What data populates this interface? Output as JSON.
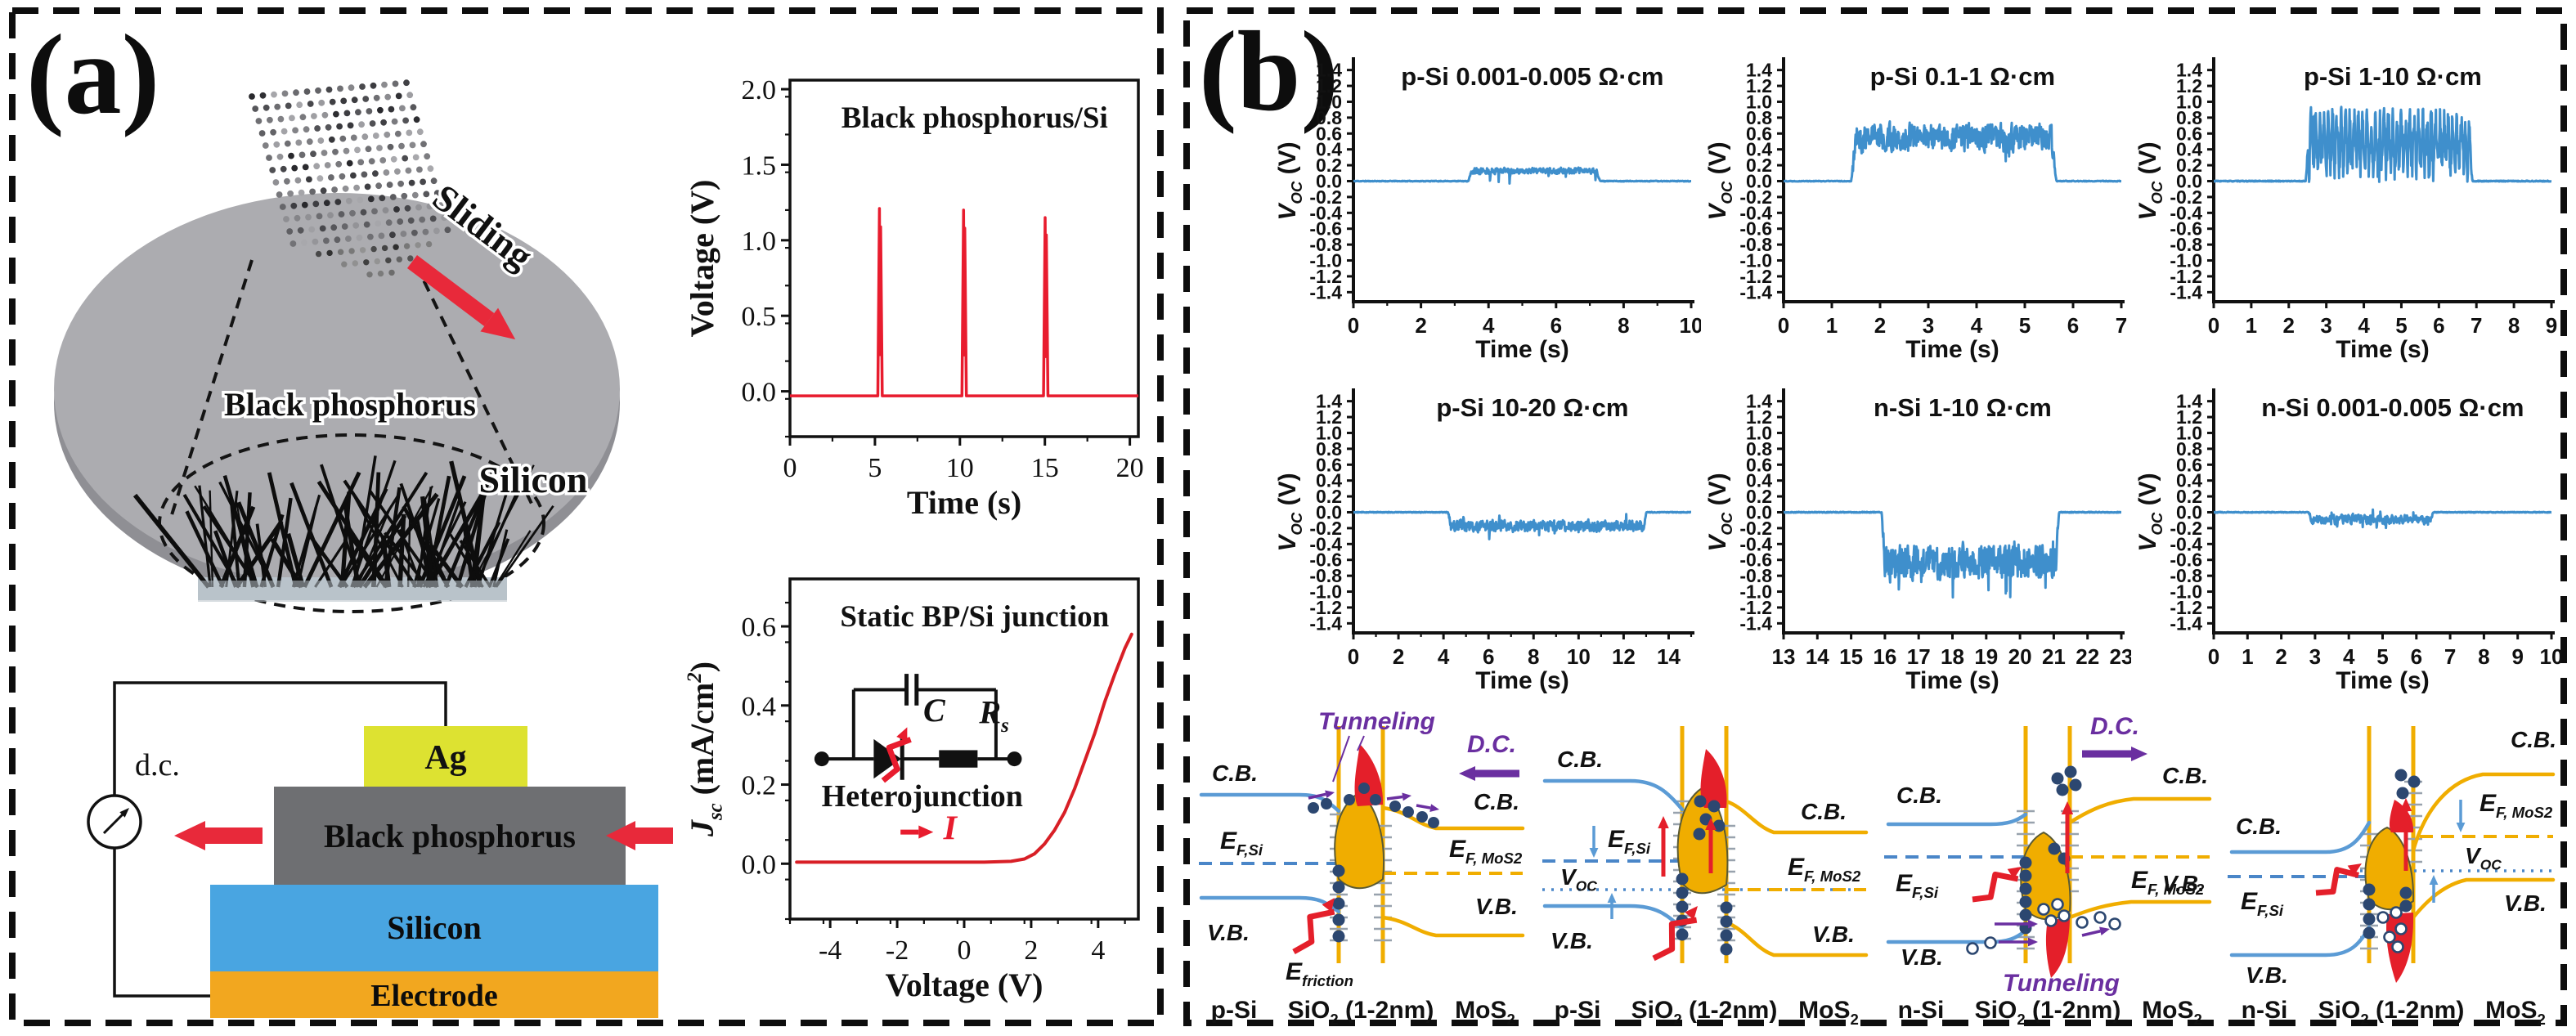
{
  "colors": {
    "curve_red": "#e81c2e",
    "curve_blue": "#3f8fcc",
    "band_blue": "#5b9bd5",
    "band_gold": "#f0ad00",
    "purple": "#6a2fa0",
    "navy": "#2c4770",
    "lightning_red": "#e41f2a",
    "wafer_gray": "#acacb0",
    "ag_yellow": "#dde231",
    "bp_gray": "#6e6f72",
    "si_blue": "#49a5e1",
    "electrode_orange": "#f2a71f"
  },
  "panel_a": {
    "label": "(a)",
    "wafer": {
      "bp_label": "Black phosphorus",
      "sliding_label": "Sliding",
      "silicon_label": "Silicon"
    },
    "device": {
      "dc_label": "d.c.",
      "ag": "Ag",
      "bp": "Black phosphorus",
      "si": "Silicon",
      "electrode": "Electrode"
    },
    "circuit": {
      "cap": "C",
      "res_main": "R",
      "res_sub": "s",
      "junction": "Heterojunction",
      "current": "I"
    }
  },
  "panel_b": {
    "label": "(b)"
  },
  "chart_data": [
    {
      "id": "bp-si-voltage",
      "type": "line",
      "panel": "a",
      "title": "Black phosphorus/Si",
      "xlabel": "Time (s)",
      "ylabel": "Voltage (V)",
      "ylabel_parts": [
        [
          "Voltage (V)",
          "n"
        ]
      ],
      "xlim": [
        0,
        20.5
      ],
      "ylim": [
        -0.3,
        2.06
      ],
      "xticks": [
        0,
        5,
        10,
        15,
        20
      ],
      "yticks": [
        0.0,
        0.5,
        1.0,
        1.5,
        2.0
      ],
      "x_minor": 2.5,
      "y_minor": 0.25,
      "baseline": -0.03,
      "spikes": [
        {
          "t": 5.3,
          "v": 1.21
        },
        {
          "t": 10.25,
          "v": 1.2
        },
        {
          "t": 15.05,
          "v": 1.15
        }
      ],
      "color": "#e81c2e"
    },
    {
      "id": "static-jv",
      "type": "line",
      "panel": "a",
      "title": "Static BP/Si junction",
      "xlabel": "Voltage (V)",
      "ylabel": "Jsc (mA/cm2)",
      "ylabel_parts": [
        [
          "J",
          "i"
        ],
        [
          "sc",
          "s"
        ],
        [
          " (mA/cm",
          "n"
        ],
        [
          "2",
          "p"
        ],
        [
          ")",
          "n"
        ]
      ],
      "xlim": [
        -5.2,
        5.2
      ],
      "ylim": [
        -0.14,
        0.72
      ],
      "xticks": [
        -4,
        -2,
        0,
        2,
        4
      ],
      "yticks": [
        0.0,
        0.2,
        0.4,
        0.6
      ],
      "x_minor": 1,
      "y_minor": 0.1,
      "points": [
        [
          -5,
          0.004
        ],
        [
          -4,
          0.004
        ],
        [
          -3,
          0.004
        ],
        [
          -2,
          0.004
        ],
        [
          -1,
          0.004
        ],
        [
          0,
          0.004
        ],
        [
          0.6,
          0.004
        ],
        [
          1.0,
          0.005
        ],
        [
          1.4,
          0.006
        ],
        [
          1.8,
          0.012
        ],
        [
          2.1,
          0.025
        ],
        [
          2.4,
          0.05
        ],
        [
          2.7,
          0.085
        ],
        [
          3.0,
          0.13
        ],
        [
          3.3,
          0.19
        ],
        [
          3.6,
          0.26
        ],
        [
          3.9,
          0.33
        ],
        [
          4.2,
          0.41
        ],
        [
          4.5,
          0.48
        ],
        [
          4.8,
          0.545
        ],
        [
          5.0,
          0.58
        ]
      ],
      "color": "#d81f26",
      "inset": "circuit"
    },
    {
      "id": "p-si-0001-0005",
      "type": "line",
      "panel": "b",
      "title": "p-Si 0.001-0.005 Ω·cm",
      "xlabel": "Time (s)",
      "ylabel": "VOC (V)",
      "ylabel_parts": [
        [
          "V",
          "i"
        ],
        [
          "OC",
          "s"
        ],
        [
          " (V)",
          "n"
        ]
      ],
      "xlim": [
        0,
        10
      ],
      "ylim": [
        -1.52,
        1.52
      ],
      "xticks": [
        0,
        2,
        4,
        6,
        8,
        10
      ],
      "x_minor": 1,
      "yticks": [
        1.4,
        1.2,
        1.0,
        0.8,
        0.6,
        0.4,
        0.2,
        0.0,
        -0.2,
        -0.4,
        -0.6,
        -0.8,
        -1.0,
        -1.2,
        -1.4
      ],
      "signal": {
        "active": [
          3.4,
          7.3
        ],
        "center": 0.13,
        "spread": 0.05,
        "spike_p": 0.03,
        "spike_lo": -0.15,
        "spike_hi": 0.22,
        "smooth": 0.35,
        "clamp": [
          -0.16,
          0.23
        ],
        "seed": 11
      },
      "color": "#3f8fcc"
    },
    {
      "id": "p-si-01-1",
      "type": "line",
      "panel": "b",
      "title": "p-Si 0.1-1 Ω·cm",
      "xlabel": "Time (s)",
      "ylabel": "VOC (V)",
      "ylabel_parts": [
        [
          "V",
          "i"
        ],
        [
          "OC",
          "s"
        ],
        [
          " (V)",
          "n"
        ]
      ],
      "xlim": [
        0,
        7
      ],
      "ylim": [
        -1.52,
        1.52
      ],
      "xticks": [
        0,
        1,
        2,
        3,
        4,
        5,
        6,
        7
      ],
      "yticks": [
        1.4,
        1.2,
        1.0,
        0.8,
        0.6,
        0.4,
        0.2,
        0.0,
        -0.2,
        -0.4,
        -0.6,
        -0.8,
        -1.0,
        -1.2,
        -1.4
      ],
      "signal": {
        "active": [
          1.4,
          5.65
        ],
        "center": 0.55,
        "spread": 0.22,
        "spike_p": 0.02,
        "spike_lo": 0.16,
        "spike_hi": 0.96,
        "smooth": 0.3,
        "clamp": [
          0.14,
          0.97
        ],
        "seed": 22
      },
      "color": "#3f8fcc"
    },
    {
      "id": "p-si-1-10",
      "type": "line",
      "panel": "b",
      "title": "p-Si 1-10 Ω·cm",
      "xlabel": "Time (s)",
      "ylabel": "VOC (V)",
      "ylabel_parts": [
        [
          "V",
          "i"
        ],
        [
          "OC",
          "s"
        ],
        [
          " (V)",
          "n"
        ]
      ],
      "xlim": [
        0,
        9
      ],
      "ylim": [
        -1.52,
        1.52
      ],
      "xticks": [
        0,
        1,
        2,
        3,
        4,
        5,
        6,
        7,
        8,
        9
      ],
      "yticks": [
        1.4,
        1.2,
        1.0,
        0.8,
        0.6,
        0.4,
        0.2,
        0.0,
        -0.2,
        -0.4,
        -0.6,
        -0.8,
        -1.0,
        -1.2,
        -1.4
      ],
      "signal": {
        "active": [
          2.45,
          6.9
        ],
        "center": 0.48,
        "spread": 0.42,
        "spike_p": 0.03,
        "spike_lo": -0.1,
        "spike_hi": 0.93,
        "smooth": 0.12,
        "clamp": [
          -0.11,
          0.94
        ],
        "osc": true,
        "seed": 33
      },
      "color": "#3f8fcc"
    },
    {
      "id": "p-si-10-20",
      "type": "line",
      "panel": "b",
      "title": "p-Si 10-20 Ω·cm",
      "xlabel": "Time (s)",
      "ylabel": "VOC (V)",
      "ylabel_parts": [
        [
          "V",
          "i"
        ],
        [
          "OC",
          "s"
        ],
        [
          " (V)",
          "n"
        ]
      ],
      "xlim": [
        0,
        15
      ],
      "ylim": [
        -1.52,
        1.52
      ],
      "xticks": [
        0,
        2,
        4,
        6,
        8,
        10,
        12,
        14
      ],
      "x_minor": 1,
      "yticks": [
        1.4,
        1.2,
        1.0,
        0.8,
        0.6,
        0.4,
        0.2,
        0.0,
        -0.2,
        -0.4,
        -0.6,
        -0.8,
        -1.0,
        -1.2,
        -1.4
      ],
      "signal": {
        "active": [
          4.2,
          13.0
        ],
        "center": -0.17,
        "spread": 0.09,
        "spike_p": 0.025,
        "spike_lo": -0.42,
        "spike_hi": 0.03,
        "smooth": 0.3,
        "clamp": [
          -0.43,
          0.04
        ],
        "seed": 44
      },
      "color": "#3f8fcc"
    },
    {
      "id": "n-si-1-10",
      "type": "line",
      "panel": "b",
      "title": "n-Si 1-10 Ω·cm",
      "xlabel": "Time (s)",
      "ylabel": "VOC (V)",
      "ylabel_parts": [
        [
          "V",
          "i"
        ],
        [
          "OC",
          "s"
        ],
        [
          " (V)",
          "n"
        ]
      ],
      "xlim": [
        13,
        23
      ],
      "ylim": [
        -1.52,
        1.52
      ],
      "xticks": [
        13,
        14,
        15,
        16,
        17,
        18,
        19,
        20,
        21,
        22,
        23
      ],
      "yticks": [
        1.4,
        1.2,
        1.0,
        0.8,
        0.6,
        0.4,
        0.2,
        0.0,
        -0.2,
        -0.4,
        -0.6,
        -0.8,
        -1.0,
        -1.2,
        -1.4
      ],
      "signal": {
        "active": [
          15.9,
          21.15
        ],
        "center": -0.63,
        "spread": 0.24,
        "spike_p": 0.05,
        "spike_lo": -1.18,
        "spike_hi": -0.3,
        "smooth": 0.18,
        "clamp": [
          -1.2,
          -0.22
        ],
        "seed": 55
      },
      "color": "#3f8fcc"
    },
    {
      "id": "n-si-0001-0005",
      "type": "line",
      "panel": "b",
      "title": "n-Si 0.001-0.005 Ω·cm",
      "xlabel": "Time (s)",
      "ylabel": "VOC (V)",
      "ylabel_parts": [
        [
          "V",
          "i"
        ],
        [
          "OC",
          "s"
        ],
        [
          " (V)",
          "n"
        ]
      ],
      "xlim": [
        0,
        10
      ],
      "ylim": [
        -1.52,
        1.52
      ],
      "xticks": [
        0,
        1,
        2,
        3,
        4,
        5,
        6,
        7,
        8,
        9,
        10
      ],
      "yticks": [
        1.4,
        1.2,
        1.0,
        0.8,
        0.6,
        0.4,
        0.2,
        0.0,
        -0.2,
        -0.4,
        -0.6,
        -0.8,
        -1.0,
        -1.2,
        -1.4
      ],
      "signal": {
        "active": [
          2.8,
          6.5
        ],
        "center": -0.09,
        "spread": 0.07,
        "spike_p": 0.05,
        "spike_lo": -0.24,
        "spike_hi": 0.16,
        "smooth": 0.3,
        "clamp": [
          -0.25,
          0.17
        ],
        "seed": 66
      },
      "color": "#3f8fcc"
    }
  ],
  "band_diagrams": [
    {
      "variant": "p1",
      "labels": {
        "cb_left": "C.B.",
        "vb_left": "V.B.",
        "cb_right": "C.B.",
        "vb_right": "V.B.",
        "ef_left": [
          [
            "E",
            "i"
          ],
          [
            "F,Si",
            "s"
          ]
        ],
        "ef_right": [
          [
            "E",
            "i"
          ],
          [
            "F, MoS2",
            "s"
          ]
        ],
        "tunneling": "Tunneling",
        "dc": "D.C.",
        "efriction": [
          [
            "E",
            "i"
          ],
          [
            "friction",
            "s"
          ]
        ],
        "region_left": "p-Si",
        "region_mid": [
          [
            "SiO",
            "n"
          ],
          [
            "2",
            "s"
          ],
          [
            " (1-2nm)",
            "n"
          ]
        ],
        "region_right": [
          [
            "MoS",
            "n"
          ],
          [
            "2",
            "s"
          ]
        ]
      }
    },
    {
      "variant": "p2",
      "labels": {
        "cb_left": "C.B.",
        "vb_left": "V.B.",
        "cb_right": "C.B.",
        "vb_right": "V.B.",
        "ef_left": [
          [
            "E",
            "i"
          ],
          [
            "F,Si",
            "s"
          ]
        ],
        "ef_right": [
          [
            "E",
            "i"
          ],
          [
            "F, MoS2",
            "s"
          ]
        ],
        "voc": [
          [
            "V",
            "i"
          ],
          [
            "OC",
            "s"
          ]
        ],
        "region_left": "p-Si",
        "region_mid": [
          [
            "SiO",
            "n"
          ],
          [
            "2",
            "s"
          ],
          [
            " (1-2nm)",
            "n"
          ]
        ],
        "region_right": [
          [
            "MoS",
            "n"
          ],
          [
            "2",
            "s"
          ]
        ]
      }
    },
    {
      "variant": "n1",
      "labels": {
        "cb_left": "C.B.",
        "vb_left": "V.B.",
        "cb_right": "C.B.",
        "vb_right": "V.B.",
        "ef_left": [
          [
            "E",
            "i"
          ],
          [
            "F,Si",
            "s"
          ]
        ],
        "ef_right": [
          [
            "E",
            "i"
          ],
          [
            "F, MoS2",
            "s"
          ]
        ],
        "tunneling": "Tunneling",
        "dc": "D.C.",
        "region_left": "n-Si",
        "region_mid": [
          [
            "SiO",
            "n"
          ],
          [
            "2",
            "s"
          ],
          [
            " (1-2nm)",
            "n"
          ]
        ],
        "region_right": [
          [
            "MoS",
            "n"
          ],
          [
            "2",
            "s"
          ]
        ]
      }
    },
    {
      "variant": "n2",
      "labels": {
        "cb_left": "C.B.",
        "vb_left": "V.B.",
        "cb_right": "C.B.",
        "vb_right": "V.B.",
        "ef_left": [
          [
            "E",
            "i"
          ],
          [
            "F,Si",
            "s"
          ]
        ],
        "ef_right": [
          [
            "E",
            "i"
          ],
          [
            "F, MoS2",
            "s"
          ]
        ],
        "voc": [
          [
            "V",
            "i"
          ],
          [
            "OC",
            "s"
          ]
        ],
        "region_left": "n-Si",
        "region_mid": [
          [
            "SiO",
            "n"
          ],
          [
            "2",
            "s"
          ],
          [
            " (1-2nm)",
            "n"
          ]
        ],
        "region_right": [
          [
            "MoS",
            "n"
          ],
          [
            "2",
            "s"
          ]
        ]
      }
    }
  ]
}
